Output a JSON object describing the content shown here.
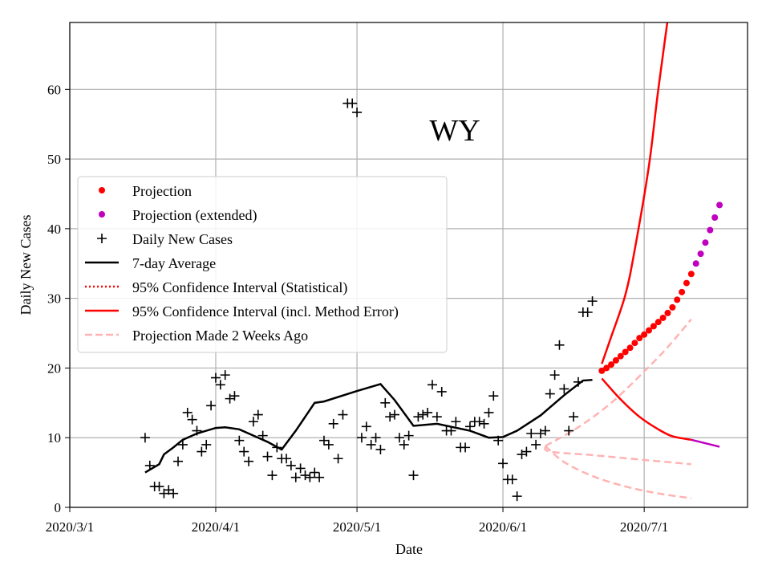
{
  "chart_data": {
    "type": "line",
    "title": "WY",
    "xlabel": "Date",
    "ylabel": "Daily New Cases",
    "ylim": [
      0,
      69.6
    ],
    "xlim": [
      "2020-03-01",
      "2020-07-27"
    ],
    "grid": true,
    "legend_position": "center-left",
    "x_ticks": [
      {
        "date": "2020-03-01",
        "label": "2020/3/1"
      },
      {
        "date": "2020-04-01",
        "label": "2020/4/1"
      },
      {
        "date": "2020-05-01",
        "label": "2020/5/1"
      },
      {
        "date": "2020-06-01",
        "label": "2020/6/1"
      },
      {
        "date": "2020-07-01",
        "label": "2020/7/1"
      }
    ],
    "y_ticks": [
      0,
      10,
      20,
      30,
      40,
      50,
      60
    ],
    "legend": [
      "Projection",
      "Projection (extended)",
      "Daily New Cases",
      "7-day Average",
      "95% Confidence Interval (Statistical)",
      "95% Confidence Interval (incl. Method Error)",
      "Projection Made 2 Weeks Ago"
    ],
    "colors": {
      "projection": "#ff0000",
      "extended": "#bf00bf",
      "cases": "#000000",
      "avg": "#000000",
      "ci": "#ff0000",
      "old": "#ffb3b3"
    },
    "daily_new_cases": {
      "start_date": "2020-03-17",
      "values": [
        10,
        6,
        3,
        3,
        2,
        2.5,
        2,
        6.6,
        9,
        13.6,
        12.6,
        11,
        8,
        9,
        14.6,
        18.6,
        17.6,
        19,
        15.6,
        16,
        9.6,
        8,
        6.6,
        12.3,
        13.3,
        10.3,
        7.3,
        4.6,
        8.6,
        7,
        7,
        6,
        4.3,
        5.6,
        4.6,
        4.3,
        5,
        4.3,
        9.6,
        9,
        12,
        7,
        13.3,
        58,
        58,
        56.7,
        10,
        11.6,
        9,
        10,
        8.3,
        15,
        13,
        13.3,
        10,
        9,
        10.3,
        4.6,
        13,
        13.3,
        13.6,
        17.6,
        13,
        16.6,
        11,
        11,
        12.3,
        8.6,
        8.6,
        11.6,
        12.3,
        12.3,
        12,
        13.6,
        16,
        9.6,
        6.3,
        4,
        4,
        1.6,
        7.6,
        8,
        10.6,
        9,
        10.6,
        11,
        16.3,
        19,
        23.3,
        17,
        11,
        13,
        18,
        28,
        28,
        29.6
      ]
    },
    "seven_day_average": [
      [
        "2020-03-17",
        5
      ],
      [
        "2020-03-20",
        6.2
      ],
      [
        "2020-03-21",
        7.6
      ],
      [
        "2020-03-23",
        8.6
      ],
      [
        "2020-03-25",
        9.7
      ],
      [
        "2020-03-28",
        10.6
      ],
      [
        "2020-04-01",
        11.4
      ],
      [
        "2020-04-03",
        11.5
      ],
      [
        "2020-04-06",
        11.2
      ],
      [
        "2020-04-09",
        10.3
      ],
      [
        "2020-04-12",
        9.4
      ],
      [
        "2020-04-15",
        8.3
      ],
      [
        "2020-04-18",
        11
      ],
      [
        "2020-04-22",
        15
      ],
      [
        "2020-04-24",
        15.2
      ],
      [
        "2020-05-01",
        16.7
      ],
      [
        "2020-05-06",
        17.7
      ],
      [
        "2020-05-09",
        15.4
      ],
      [
        "2020-05-13",
        11.7
      ],
      [
        "2020-05-18",
        12
      ],
      [
        "2020-05-25",
        11
      ],
      [
        "2020-05-29",
        10
      ],
      [
        "2020-06-01",
        10.1
      ],
      [
        "2020-06-04",
        11
      ],
      [
        "2020-06-09",
        13.2
      ],
      [
        "2020-06-14",
        16.1
      ],
      [
        "2020-06-18",
        18.2
      ],
      [
        "2020-06-20",
        18.3
      ]
    ],
    "projection": {
      "start_date": "2020-06-22",
      "values": [
        19.6,
        20.0,
        20.5,
        21.1,
        21.7,
        22.3,
        22.9,
        23.6,
        24.3,
        24.8,
        25.4,
        26.0,
        26.6,
        27.2,
        27.9,
        28.7,
        29.8,
        30.9,
        32.2,
        33.5
      ]
    },
    "projection_extended": {
      "start_date": "2020-07-12",
      "values": [
        35,
        36.4,
        38,
        39.8,
        41.6,
        43.4
      ]
    },
    "ci_method_upper": [
      [
        "2020-06-22",
        20.6
      ],
      [
        "2020-06-24",
        24.5
      ],
      [
        "2020-06-27",
        30.5
      ],
      [
        "2020-06-29",
        37
      ],
      [
        "2020-07-02",
        49
      ],
      [
        "2020-07-04",
        60
      ],
      [
        "2020-07-07",
        75
      ]
    ],
    "ci_method_lower": [
      [
        "2020-06-22",
        18.5
      ],
      [
        "2020-06-26",
        15.5
      ],
      [
        "2020-06-30",
        13
      ],
      [
        "2020-07-04",
        11.2
      ],
      [
        "2020-07-07",
        10.2
      ],
      [
        "2020-07-11",
        9.7
      ]
    ],
    "ci_lower_extended": [
      [
        "2020-07-11",
        9.7
      ],
      [
        "2020-07-17",
        8.7
      ]
    ],
    "old_projection_upper": [
      [
        "2020-06-10",
        8.8
      ],
      [
        "2020-06-17",
        11.5
      ],
      [
        "2020-06-24",
        15
      ],
      [
        "2020-07-01",
        19.5
      ],
      [
        "2020-07-06",
        23
      ],
      [
        "2020-07-11",
        27
      ]
    ],
    "old_projection_mid": [
      [
        "2020-06-10",
        8.8
      ],
      [
        "2020-06-11",
        8
      ],
      [
        "2020-06-20",
        7.5
      ],
      [
        "2020-07-01",
        6.8
      ],
      [
        "2020-07-11",
        6.2
      ]
    ],
    "old_projection_lower": [
      [
        "2020-06-10",
        8.8
      ],
      [
        "2020-06-14",
        6.5
      ],
      [
        "2020-06-20",
        4.5
      ],
      [
        "2020-06-27",
        3
      ],
      [
        "2020-07-04",
        2
      ],
      [
        "2020-07-11",
        1.3
      ]
    ]
  }
}
